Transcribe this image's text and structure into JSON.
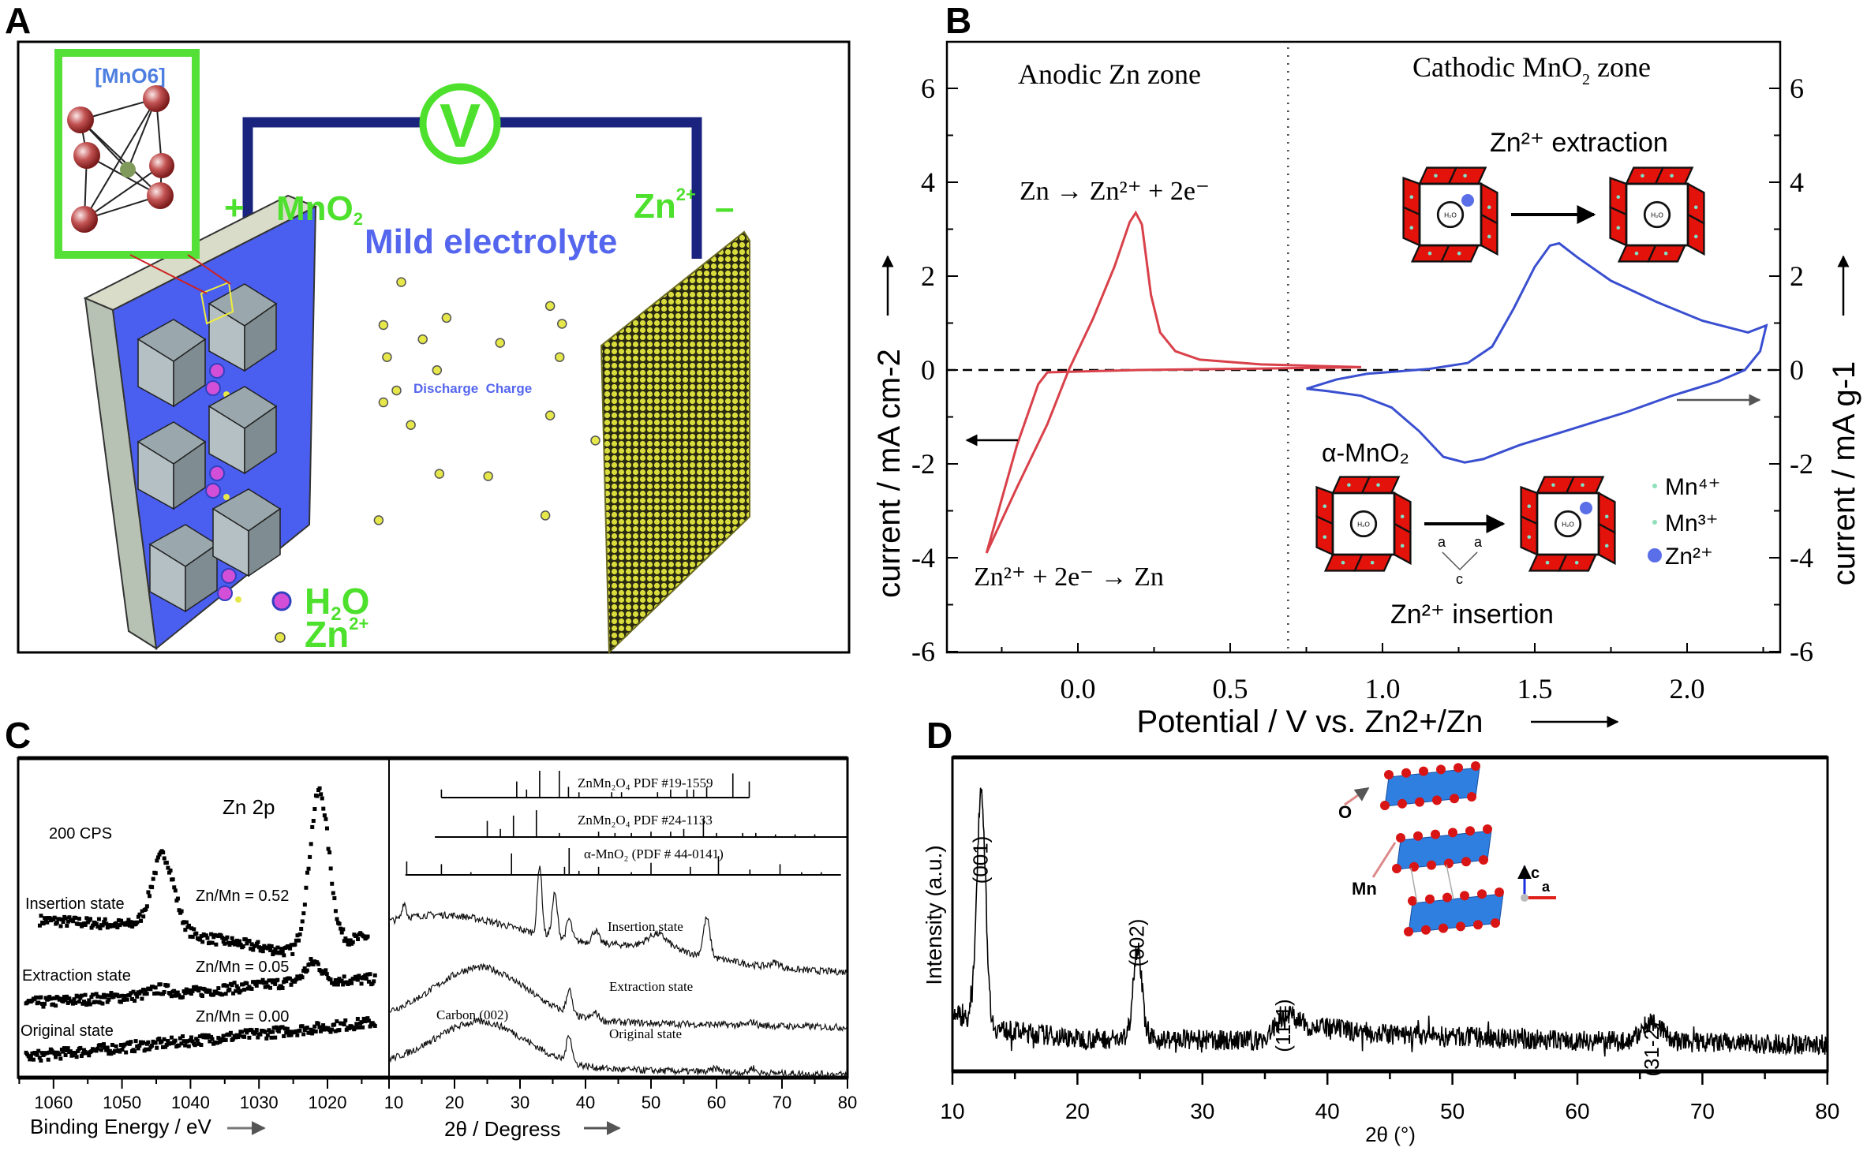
{
  "panel_labels": [
    "A",
    "B",
    "C",
    "D"
  ],
  "colors": {
    "cv_red": "#d9414a",
    "cv_blue": "#3a4fd0",
    "green_label": "#4de02c",
    "blue_text": "#5566ee",
    "wire": "#1a237e",
    "framework_red": "#e3120b",
    "zn_yellow": "#e6e84a",
    "h2o_magenta": "#d34fd8"
  },
  "panel_a": {
    "inset_title": "[MnO6]",
    "plus": "+",
    "minus": "–",
    "cathode_label": "MnO",
    "cathode_sub": "2",
    "anode_label": "Zn",
    "anode_sup": "2+",
    "voltmeter": "V",
    "electrolyte": "Mild electrolyte",
    "process": "Discharge  Charge",
    "legend_h2o": "H",
    "legend_h2o_sub": "2",
    "legend_h2o_end": "O",
    "legend_zn": "Zn",
    "legend_zn_sup": "2+"
  },
  "chart_data": [
    {
      "id": "B",
      "type": "line",
      "xlabel": "Potential / V vs. Zn2+/Zn",
      "ylabel_left": "current / mA cm-2",
      "ylabel_right": "current / mA g-1",
      "xlim": [
        -0.4,
        2.3
      ],
      "ylim": [
        -6,
        6
      ],
      "xticks": [
        "0.0",
        "0.5",
        "1.0",
        "1.5",
        "2.0"
      ],
      "yticks": [
        "-6",
        "-4",
        "-2",
        "0",
        "2",
        "4",
        "6"
      ],
      "zone_divider_x": 0.69,
      "annotations": {
        "anodic_zone": "Anodic Zn zone",
        "cathodic_zone": "Cathodic MnO",
        "cathodic_zone_sub": "2",
        "cathodic_zone_end": " zone",
        "zn_oxidation": "Zn → Zn²⁺ + 2e⁻",
        "zn_reduction": "Zn²⁺ + 2e⁻ → Zn",
        "extraction": "Zn²⁺ extraction",
        "insertion": "Zn²⁺ insertion",
        "alpha_mno2": "α-MnO₂",
        "axis_a": "a",
        "axis_c": "c",
        "legend": [
          "Mn⁴⁺",
          "Mn³⁺",
          "Zn²⁺"
        ]
      },
      "series": [
        {
          "axis": "left",
          "color": "#d9414a",
          "points": [
            [
              -0.3,
              -3.9
            ],
            [
              -0.2,
              -2.5
            ],
            [
              -0.1,
              -1.15
            ],
            [
              -0.03,
              0
            ],
            [
              0.05,
              1.1
            ],
            [
              0.12,
              2.2
            ],
            [
              0.17,
              3.15
            ],
            [
              0.19,
              3.35
            ],
            [
              0.21,
              3.1
            ],
            [
              0.24,
              1.6
            ],
            [
              0.27,
              0.8
            ],
            [
              0.32,
              0.4
            ],
            [
              0.4,
              0.22
            ],
            [
              0.6,
              0.12
            ],
            [
              0.93,
              0.06
            ],
            [
              0.6,
              0.03
            ],
            [
              0.2,
              0.0
            ],
            [
              -0.1,
              -0.05
            ],
            [
              -0.13,
              -0.3
            ],
            [
              -0.2,
              -1.6
            ],
            [
              -0.3,
              -3.9
            ]
          ]
        },
        {
          "axis": "right",
          "color": "#3a4fd0",
          "points": [
            [
              0.75,
              -0.4
            ],
            [
              0.85,
              -0.2
            ],
            [
              0.95,
              -0.08
            ],
            [
              1.15,
              0.02
            ],
            [
              1.28,
              0.15
            ],
            [
              1.36,
              0.5
            ],
            [
              1.43,
              1.3
            ],
            [
              1.5,
              2.2
            ],
            [
              1.55,
              2.65
            ],
            [
              1.58,
              2.7
            ],
            [
              1.64,
              2.4
            ],
            [
              1.75,
              1.9
            ],
            [
              1.9,
              1.45
            ],
            [
              2.05,
              1.05
            ],
            [
              2.2,
              0.8
            ],
            [
              2.26,
              0.95
            ],
            [
              2.24,
              0.4
            ],
            [
              2.19,
              0.0
            ],
            [
              2.1,
              -0.25
            ],
            [
              1.95,
              -0.55
            ],
            [
              1.8,
              -0.9
            ],
            [
              1.6,
              -1.3
            ],
            [
              1.45,
              -1.6
            ],
            [
              1.33,
              -1.9
            ],
            [
              1.27,
              -1.97
            ],
            [
              1.2,
              -1.85
            ],
            [
              1.12,
              -1.3
            ],
            [
              1.03,
              -0.8
            ],
            [
              0.93,
              -0.55
            ],
            [
              0.82,
              -0.45
            ],
            [
              0.75,
              -0.4
            ]
          ]
        }
      ]
    },
    {
      "id": "C-left",
      "type": "scatter",
      "title": "Zn 2p",
      "scale_label": "200 CPS",
      "xlabel": "Binding Energy / eV",
      "xlim": [
        1065,
        1012
      ],
      "xticks": [
        "1060",
        "1050",
        "1040",
        "1030",
        "1020"
      ],
      "series": [
        {
          "name": "Insertion state",
          "ratio": "Zn/Mn = 0.52",
          "baseline": [
            [
              1062,
              54
            ],
            [
              1048,
              52
            ],
            [
              1030,
              44
            ],
            [
              1025,
              42
            ],
            [
              1014,
              48
            ]
          ],
          "peaks": [
            [
              1044,
              28,
              1.6
            ],
            [
              1021.2,
              58,
              1.4
            ]
          ]
        },
        {
          "name": "Extraction state",
          "ratio": "Zn/Mn = 0.05",
          "baseline": [
            [
              1064,
              23
            ],
            [
              1040,
              27
            ],
            [
              1025,
              31
            ],
            [
              1013,
              32
            ]
          ],
          "peaks": [
            [
              1044.5,
              2,
              1.5
            ],
            [
              1022,
              7,
              1.2
            ]
          ]
        },
        {
          "name": "Original state",
          "ratio": "Zn/Mn = 0.00",
          "baseline": [
            [
              1064,
              3
            ],
            [
              1040,
              9
            ],
            [
              1013,
              16
            ]
          ],
          "peaks": []
        }
      ]
    },
    {
      "id": "C-right",
      "type": "line",
      "xlabel": "2θ / Degress",
      "xlim": [
        10,
        80
      ],
      "xticks": [
        "10",
        "20",
        "30",
        "40",
        "50",
        "60",
        "70",
        "80"
      ],
      "references": [
        {
          "name": "ZnMn₂O₄ PDF #19-1559",
          "range": [
            18,
            65
          ],
          "sticks": [
            [
              18,
              0.3
            ],
            [
              29.5,
              0.6
            ],
            [
              31,
              0.3
            ],
            [
              33,
              1
            ],
            [
              36,
              1
            ],
            [
              37.4,
              0.4
            ],
            [
              39,
              0.2
            ],
            [
              44,
              0.2
            ],
            [
              45.5,
              0.2
            ],
            [
              51,
              0.2
            ],
            [
              53,
              0.3
            ],
            [
              55.5,
              0.3
            ],
            [
              56.5,
              0.3
            ],
            [
              58.5,
              0.4
            ],
            [
              62.5,
              0.9
            ],
            [
              65,
              0.6
            ]
          ]
        },
        {
          "name": "ZnMn₂O₄ PDF #24-1133",
          "range": [
            17,
            80
          ],
          "sticks": [
            [
              25,
              0.6
            ],
            [
              27,
              0.3
            ],
            [
              29,
              0.8
            ],
            [
              32.5,
              1
            ],
            [
              36,
              0.15
            ],
            [
              42,
              0.2
            ],
            [
              44.5,
              0.15
            ],
            [
              47,
              0.15
            ],
            [
              50,
              0.2
            ],
            [
              53,
              0.2
            ],
            [
              55,
              0.3
            ],
            [
              58,
              0.7
            ],
            [
              60,
              0.15
            ],
            [
              64,
              0.15
            ],
            [
              66,
              0.15
            ],
            [
              69,
              0.1
            ],
            [
              72,
              0.1
            ],
            [
              75,
              0.1
            ]
          ]
        },
        {
          "name": "α-MnO₂ (PDF # 44-0141)",
          "range": [
            12.5,
            79
          ],
          "sticks": [
            [
              12.7,
              0.5
            ],
            [
              18,
              0.4
            ],
            [
              22.5,
              0.1
            ],
            [
              28.7,
              0.8
            ],
            [
              37.5,
              1
            ],
            [
              36.8,
              0.3
            ],
            [
              39,
              0.15
            ],
            [
              42,
              0.3
            ],
            [
              47,
              0.1
            ],
            [
              50,
              0.45
            ],
            [
              56,
              0.3
            ],
            [
              60.3,
              0.7
            ],
            [
              65.1,
              0.2
            ],
            [
              69.7,
              0.4
            ],
            [
              73,
              0.1
            ],
            [
              76,
              0.1
            ]
          ]
        }
      ],
      "series": [
        {
          "name": "Insertion state",
          "offset": 0,
          "hump": [
            [
              18,
              28,
              14
            ]
          ],
          "peaks": [
            [
              12.3,
              9,
              0.3
            ],
            [
              33,
              40,
              0.35
            ],
            [
              35.3,
              25,
              0.4
            ],
            [
              37.5,
              12,
              0.4
            ],
            [
              41.5,
              7,
              0.5
            ],
            [
              51,
              8,
              1.5
            ],
            [
              58.5,
              22,
              0.5
            ],
            [
              69,
              3,
              0.8
            ]
          ]
        },
        {
          "name": "Extraction state",
          "offset": 0,
          "hump": [
            [
              24,
              30,
              7
            ]
          ],
          "peaks": [
            [
              37.5,
              14,
              0.4
            ],
            [
              41.5,
              4,
              0.5
            ],
            [
              65.5,
              2,
              0.5
            ]
          ]
        },
        {
          "name": "Original state",
          "offset": 0,
          "annotation": "Carbon (002)",
          "hump": [
            [
              24,
              26,
              7
            ]
          ],
          "peaks": [
            [
              37.5,
              16,
              0.4
            ],
            [
              65.5,
              3,
              0.4
            ],
            [
              60,
              2,
              0.6
            ]
          ]
        }
      ]
    },
    {
      "id": "D",
      "type": "line",
      "ylabel": "Intensity (a.u.)",
      "xlabel": "2θ (°)",
      "xlim": [
        10,
        80
      ],
      "xticks": [
        "10",
        "20",
        "30",
        "40",
        "50",
        "60",
        "70",
        "80"
      ],
      "peak_labels": [
        "(001)",
        "(002)",
        "(11-1)",
        "(31-2)"
      ],
      "peak_positions": [
        12.3,
        24.8,
        36.5,
        66.0
      ],
      "baseline": [
        [
          10,
          22
        ],
        [
          13,
          14
        ],
        [
          20,
          9
        ],
        [
          35,
          8
        ],
        [
          37,
          16
        ],
        [
          45,
          11
        ],
        [
          60,
          8
        ],
        [
          80,
          6
        ]
      ],
      "peaks": [
        [
          12.3,
          115,
          0.35
        ],
        [
          24.8,
          45,
          0.35
        ],
        [
          36.6,
          6,
          0.8
        ],
        [
          66,
          10,
          0.8
        ]
      ],
      "inset_labels": {
        "oxygen": "O",
        "manganese": "Mn",
        "axis_c": "c",
        "axis_a": "a"
      }
    }
  ]
}
